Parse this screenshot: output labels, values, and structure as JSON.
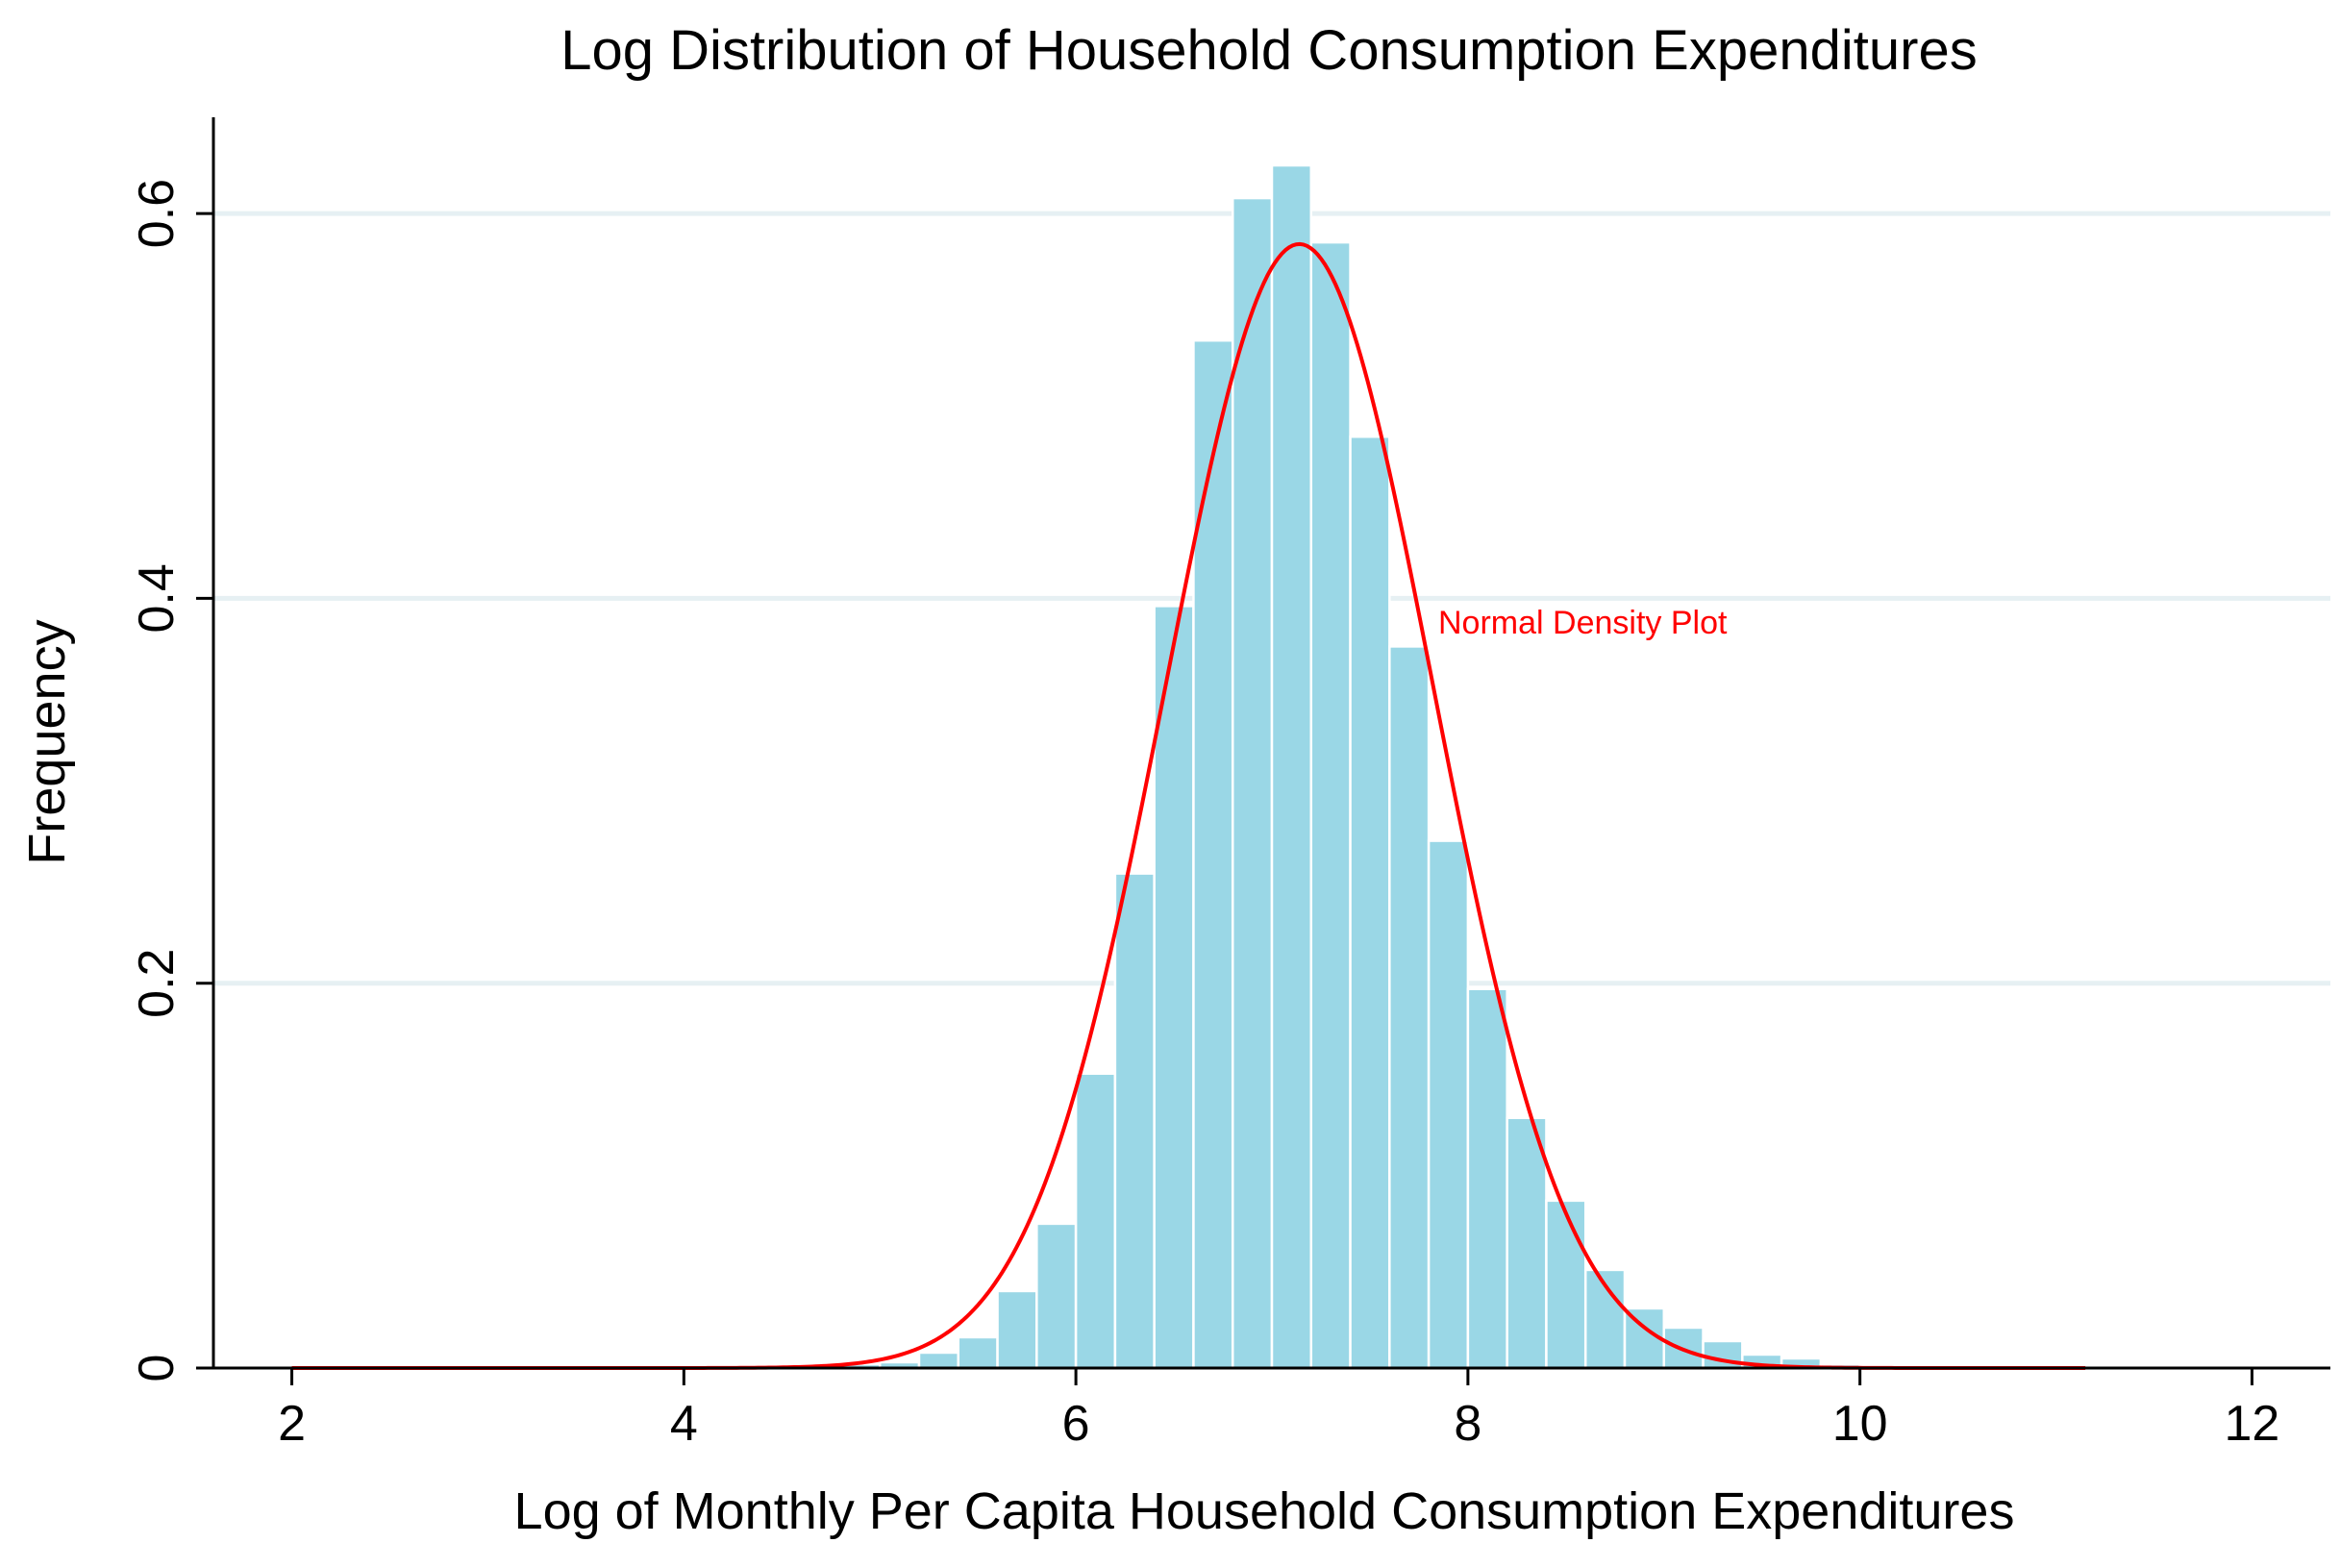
{
  "chart_data": {
    "type": "bar",
    "title": "Log Distribution of Household Consumption Expenditures",
    "xlabel": "Log of Monthly Per Capita Household Consumption Expenditures",
    "ylabel": "Frequency",
    "xlim": [
      1.6,
      12.4
    ],
    "ylim": [
      0,
      0.65
    ],
    "x_ticks": [
      2,
      4,
      6,
      8,
      10,
      12
    ],
    "x_tick_labels": [
      "2",
      "4",
      "6",
      "8",
      "10",
      "12"
    ],
    "y_ticks": [
      0,
      0.2,
      0.4,
      0.6
    ],
    "y_tick_labels": [
      "0",
      "0.2",
      "0.4",
      "0.6"
    ],
    "grid": true,
    "bin_width": 0.2,
    "bins": [
      {
        "x0": 4.6,
        "value": 0.001
      },
      {
        "x0": 4.8,
        "value": 0.002
      },
      {
        "x0": 5.0,
        "value": 0.003
      },
      {
        "x0": 5.2,
        "value": 0.008
      },
      {
        "x0": 5.4,
        "value": 0.016
      },
      {
        "x0": 5.6,
        "value": 0.04
      },
      {
        "x0": 5.8,
        "value": 0.075
      },
      {
        "x0": 6.0,
        "value": 0.153
      },
      {
        "x0": 6.2,
        "value": 0.257
      },
      {
        "x0": 6.4,
        "value": 0.396
      },
      {
        "x0": 6.6,
        "value": 0.534
      },
      {
        "x0": 6.8,
        "value": 0.608
      },
      {
        "x0": 7.0,
        "value": 0.625
      },
      {
        "x0": 7.2,
        "value": 0.585
      },
      {
        "x0": 7.4,
        "value": 0.484
      },
      {
        "x0": 7.6,
        "value": 0.375
      },
      {
        "x0": 7.8,
        "value": 0.274
      },
      {
        "x0": 8.0,
        "value": 0.197
      },
      {
        "x0": 8.2,
        "value": 0.13
      },
      {
        "x0": 8.4,
        "value": 0.087
      },
      {
        "x0": 8.6,
        "value": 0.051
      },
      {
        "x0": 8.8,
        "value": 0.031
      },
      {
        "x0": 9.0,
        "value": 0.021
      },
      {
        "x0": 9.2,
        "value": 0.014
      },
      {
        "x0": 9.4,
        "value": 0.007
      },
      {
        "x0": 9.6,
        "value": 0.005
      },
      {
        "x0": 9.8,
        "value": 0.002
      },
      {
        "x0": 10.0,
        "value": 0.0015
      },
      {
        "x0": 10.2,
        "value": 0.001
      },
      {
        "x0": 10.4,
        "value": 0.001
      },
      {
        "x0": 10.6,
        "value": 0.001
      },
      {
        "x0": 10.8,
        "value": 0.001
      },
      {
        "x0": 11.0,
        "value": 0.001
      }
    ],
    "normal_density": {
      "name": "Normal Density Plot",
      "mean": 7.14,
      "sd": 0.683,
      "x_range": [
        2.0,
        11.15
      ]
    },
    "annotation": "Normal Density Plot",
    "colors": {
      "bars": "#9AD7E6",
      "bar_edge": "#FFFFFF",
      "curve": "#FF0000",
      "grid": "#E6F0F3",
      "axis": "#000000"
    }
  }
}
